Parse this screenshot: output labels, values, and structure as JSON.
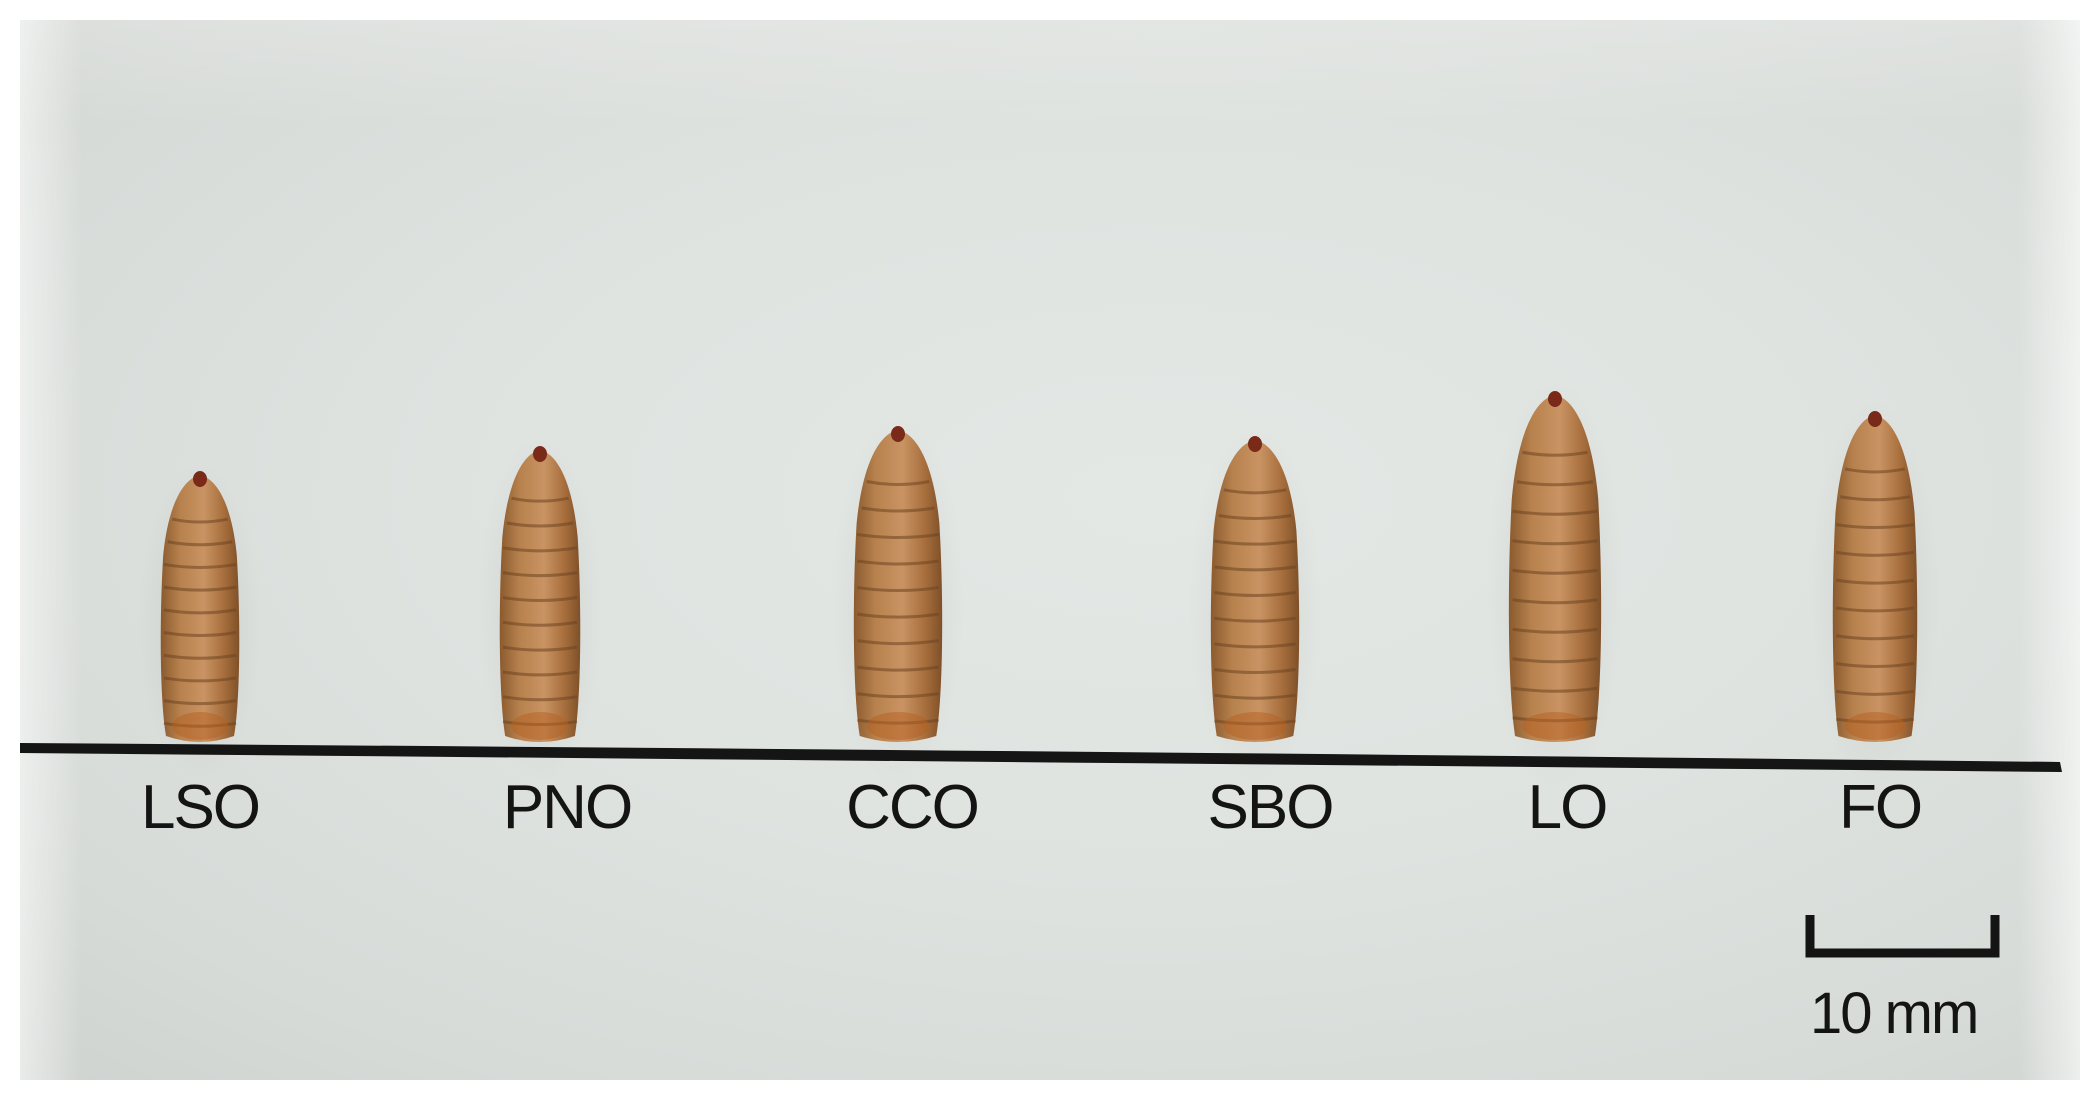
{
  "figure": {
    "specimens": [
      {
        "label": "LSO"
      },
      {
        "label": "PNO"
      },
      {
        "label": "CCO"
      },
      {
        "label": "SBO"
      },
      {
        "label": "LO"
      },
      {
        "label": "FO"
      }
    ],
    "scale_bar": {
      "label": "10 mm"
    },
    "colors": {
      "background": "#dfe3e0",
      "larva": "#b07a48",
      "line": "#141414"
    }
  }
}
